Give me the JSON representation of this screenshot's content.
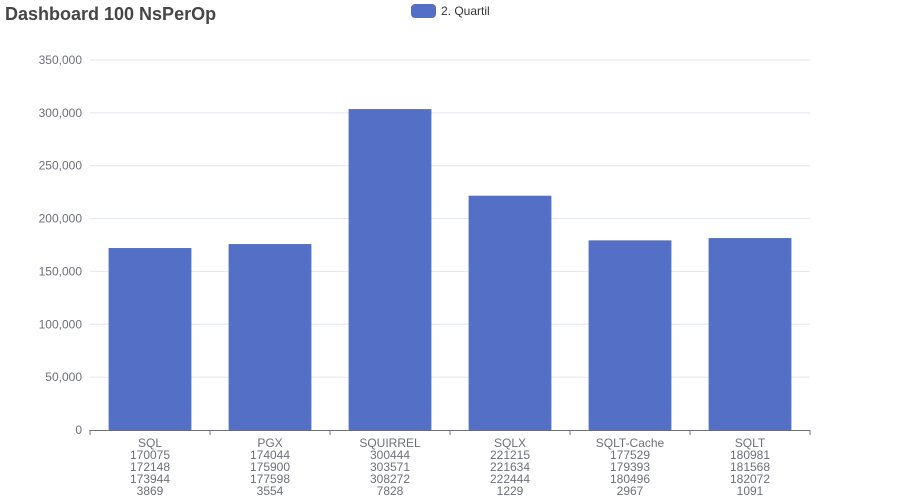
{
  "chart_data": {
    "type": "bar",
    "title": "Dashboard 100 NsPerOp",
    "categories": [
      "SQL",
      "PGX",
      "SQUIRREL",
      "SQLX",
      "SQLT-Cache",
      "SQLT"
    ],
    "category_sublabels": [
      [
        "170075",
        "172148",
        "173944",
        "3869"
      ],
      [
        "174044",
        "175900",
        "177598",
        "3554"
      ],
      [
        "300444",
        "303571",
        "308272",
        "7828"
      ],
      [
        "221215",
        "221634",
        "222444",
        "1229"
      ],
      [
        "177529",
        "179393",
        "180496",
        "2967"
      ],
      [
        "180981",
        "181568",
        "182072",
        "1091"
      ]
    ],
    "series": [
      {
        "name": "2. Quartil",
        "values": [
          172148,
          175900,
          303571,
          221634,
          179393,
          181568
        ]
      }
    ],
    "ylim": [
      0,
      350000
    ],
    "y_ticks": [
      0,
      50000,
      100000,
      150000,
      200000,
      250000,
      300000,
      350000
    ],
    "y_tick_labels": [
      "0",
      "50,000",
      "100,000",
      "150,000",
      "200,000",
      "250,000",
      "300,000",
      "350,000"
    ],
    "xlabel": "",
    "ylabel": "",
    "grid": true,
    "legend_position": "top-center",
    "colors": {
      "bar": "#5470c6",
      "grid": "#e0e6f1",
      "axis": "#6e7079",
      "tick_text": "#6e7079",
      "title": "#464646"
    }
  }
}
